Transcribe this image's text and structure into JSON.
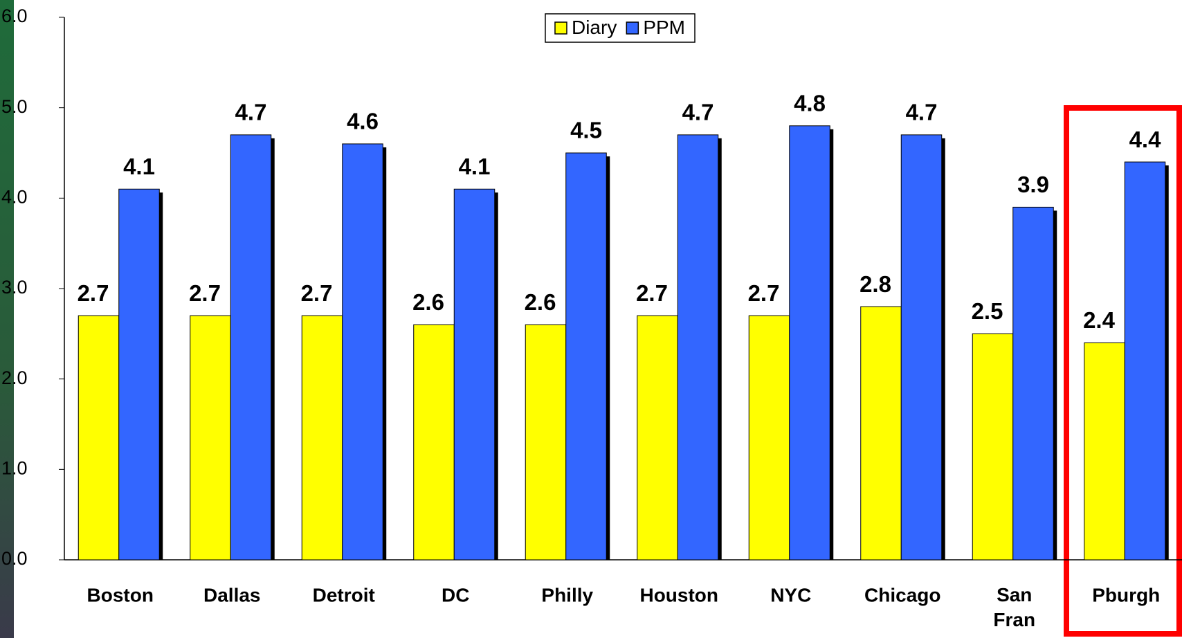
{
  "chart_data": {
    "type": "bar",
    "categories": [
      "Boston",
      "Dallas",
      "Detroit",
      "DC",
      "Philly",
      "Houston",
      "NYC",
      "Chicago",
      "San Fran",
      "Pburgh"
    ],
    "series": [
      {
        "name": "Diary",
        "color": "#ffff00",
        "values": [
          2.7,
          2.7,
          2.7,
          2.6,
          2.6,
          2.7,
          2.7,
          2.8,
          2.5,
          2.4
        ]
      },
      {
        "name": "PPM",
        "color": "#3366ff",
        "values": [
          4.1,
          4.7,
          4.6,
          4.1,
          4.5,
          4.7,
          4.8,
          4.7,
          3.9,
          4.4
        ]
      }
    ],
    "ylim": [
      0,
      6
    ],
    "yticks": [
      {
        "value": 0,
        "label": "0.0"
      },
      {
        "value": 1,
        "label": "1.0"
      },
      {
        "value": 2,
        "label": "2.0"
      },
      {
        "value": 3,
        "label": "3.0"
      },
      {
        "value": 4,
        "label": "4.0"
      },
      {
        "value": 5,
        "label": "5.0"
      },
      {
        "value": 6,
        "label": "6.0"
      }
    ],
    "legend": "top"
  }
}
